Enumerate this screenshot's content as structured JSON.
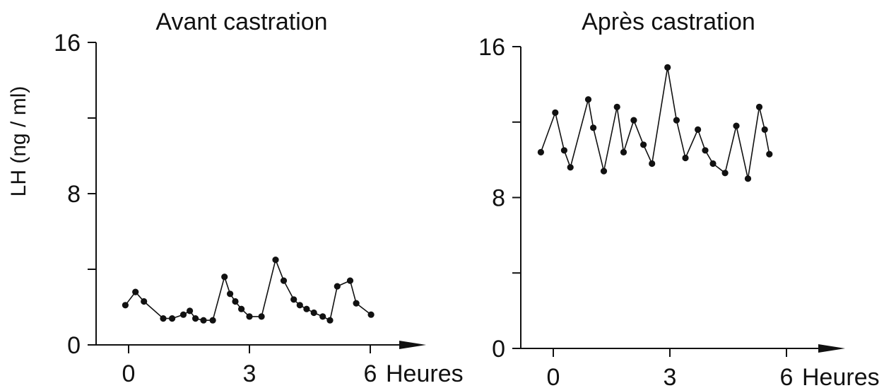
{
  "chart_data": [
    {
      "type": "line",
      "title": "Avant castration",
      "ylabel": "LH (ng / ml)",
      "xlabel": "Heures",
      "xlim": [
        -0.5,
        7.2
      ],
      "ylim": [
        0,
        16
      ],
      "xticks": [
        0,
        3,
        6
      ],
      "xtick_labels": [
        "0",
        "3",
        "6"
      ],
      "yticks": [
        0,
        4,
        8,
        12,
        16
      ],
      "ytick_labels": [
        "0",
        "",
        "8",
        "",
        "16"
      ],
      "grid": false,
      "series": [
        {
          "x": [
            -0.08,
            0.17,
            0.38,
            0.86,
            1.08,
            1.36,
            1.52,
            1.66,
            1.86,
            2.09,
            2.38,
            2.52,
            2.65,
            2.8,
            3.0,
            3.3,
            3.65,
            3.85,
            4.1,
            4.25,
            4.42,
            4.6,
            4.82,
            5.0,
            5.18,
            5.5,
            5.65,
            6.02
          ],
          "y": [
            2.1,
            2.8,
            2.3,
            1.4,
            1.4,
            1.6,
            1.8,
            1.4,
            1.3,
            1.3,
            3.6,
            2.7,
            2.3,
            1.9,
            1.5,
            1.5,
            4.5,
            3.4,
            2.4,
            2.1,
            1.9,
            1.7,
            1.5,
            1.3,
            3.1,
            3.4,
            2.2,
            1.6
          ]
        }
      ]
    },
    {
      "type": "line",
      "title": "Après castration",
      "ylabel": "",
      "xlabel": "Heures",
      "xlim": [
        -0.5,
        7.2
      ],
      "ylim": [
        0,
        16
      ],
      "xticks": [
        0,
        3,
        6
      ],
      "xtick_labels": [
        "0",
        "3",
        "6"
      ],
      "yticks": [
        0,
        4,
        8,
        12,
        16
      ],
      "ytick_labels": [
        "0",
        "",
        "8",
        "",
        "16"
      ],
      "grid": false,
      "series": [
        {
          "x": [
            -0.32,
            0.05,
            0.28,
            0.44,
            0.9,
            1.03,
            1.3,
            1.64,
            1.81,
            2.07,
            2.32,
            2.54,
            2.94,
            3.17,
            3.4,
            3.72,
            3.91,
            4.11,
            4.42,
            4.71,
            5.01,
            5.3,
            5.44,
            5.56
          ],
          "y": [
            10.4,
            12.5,
            10.5,
            9.6,
            13.2,
            11.7,
            9.4,
            12.8,
            10.4,
            12.1,
            10.8,
            9.8,
            14.9,
            12.1,
            10.1,
            11.6,
            10.5,
            9.8,
            9.3,
            11.8,
            9.0,
            12.8,
            11.6,
            10.3
          ]
        }
      ]
    }
  ]
}
